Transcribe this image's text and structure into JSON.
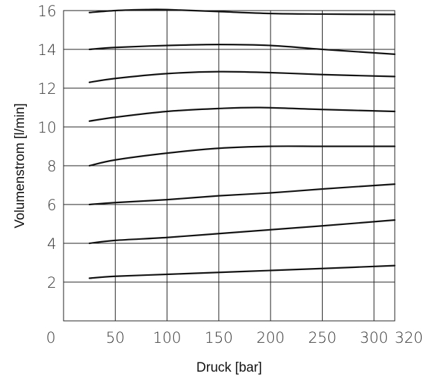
{
  "chart_data": {
    "type": "line",
    "title": "",
    "xlabel": "Druck [bar]",
    "ylabel": "Volumenstrom [l/min]",
    "xlim": [
      0,
      320
    ],
    "ylim": [
      0,
      16
    ],
    "x_ticks": [
      0,
      50,
      100,
      150,
      200,
      250,
      300,
      320
    ],
    "y_ticks": [
      2,
      4,
      6,
      8,
      10,
      12,
      14,
      16
    ],
    "grid": true,
    "legend": "none",
    "series": [
      {
        "x": [
          25,
          50,
          100,
          150,
          200,
          250,
          320
        ],
        "y": [
          2.2,
          2.3,
          2.4,
          2.5,
          2.6,
          2.7,
          2.85
        ]
      },
      {
        "x": [
          25,
          50,
          100,
          150,
          200,
          250,
          320
        ],
        "y": [
          4.0,
          4.15,
          4.3,
          4.5,
          4.7,
          4.9,
          5.2
        ]
      },
      {
        "x": [
          25,
          50,
          100,
          150,
          200,
          250,
          320
        ],
        "y": [
          6.0,
          6.1,
          6.25,
          6.45,
          6.6,
          6.8,
          7.05
        ]
      },
      {
        "x": [
          25,
          50,
          100,
          150,
          200,
          250,
          320
        ],
        "y": [
          8.0,
          8.3,
          8.65,
          8.9,
          9.0,
          9.0,
          9.0
        ]
      },
      {
        "x": [
          25,
          50,
          100,
          150,
          190,
          250,
          320
        ],
        "y": [
          10.3,
          10.5,
          10.8,
          10.95,
          11.0,
          10.9,
          10.8
        ]
      },
      {
        "x": [
          25,
          50,
          100,
          150,
          200,
          250,
          320
        ],
        "y": [
          12.3,
          12.5,
          12.75,
          12.85,
          12.8,
          12.7,
          12.6
        ]
      },
      {
        "x": [
          25,
          50,
          100,
          150,
          200,
          250,
          320
        ],
        "y": [
          14.0,
          14.1,
          14.2,
          14.25,
          14.2,
          14.0,
          13.75
        ]
      },
      {
        "x": [
          25,
          50,
          80,
          100,
          150,
          200,
          250,
          320
        ],
        "y": [
          15.9,
          16.0,
          16.05,
          16.05,
          15.95,
          15.85,
          15.82,
          15.8
        ]
      }
    ]
  }
}
